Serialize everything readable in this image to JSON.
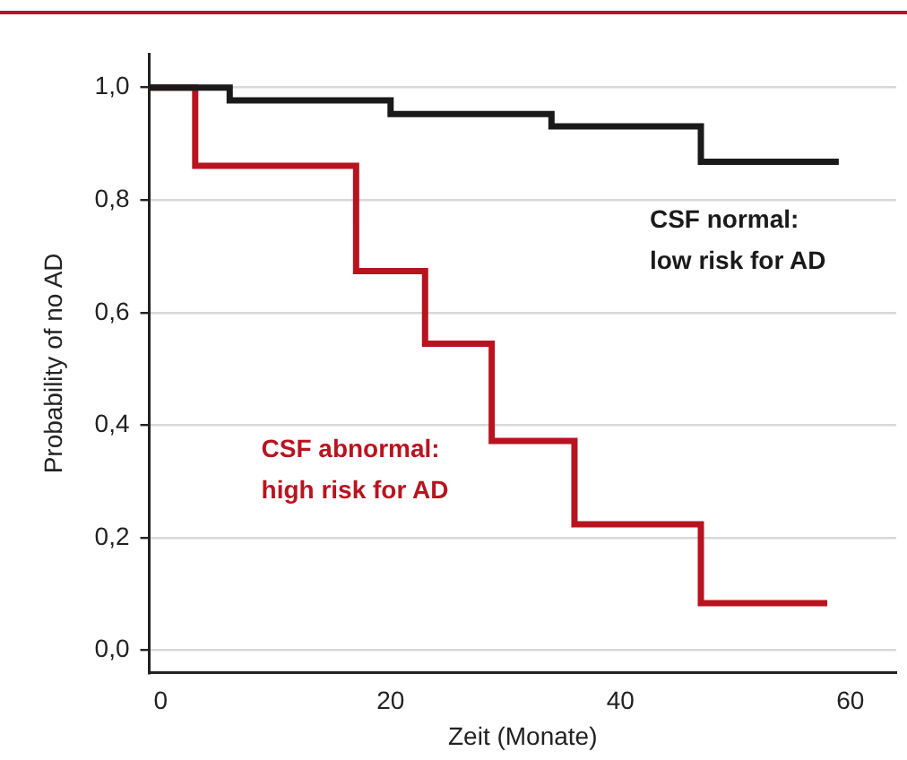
{
  "chart_data": {
    "type": "step",
    "xlabel": "Zeit (Monate)",
    "ylabel": "Probability of no AD",
    "xlim": [
      -1,
      64
    ],
    "xticks": [
      0,
      20,
      40,
      60
    ],
    "ylim": [
      -0.04,
      1.06
    ],
    "yticks": [
      {
        "value": 0,
        "label": "0,0"
      },
      {
        "value": 0.2,
        "label": "0,2"
      },
      {
        "value": 0.4,
        "label": "0,4"
      },
      {
        "value": 0.6,
        "label": "0,6"
      },
      {
        "value": 0.8,
        "label": "0,8"
      },
      {
        "value": 1,
        "label": "1,0"
      }
    ],
    "grid": "y",
    "legend": false,
    "series": [
      {
        "name": "CSF normal:\nlow risk for AD",
        "color": "#1a1a1a",
        "x": [
          -1,
          6,
          20,
          34,
          47,
          59
        ],
        "values": [
          1,
          0.977,
          0.953,
          0.931,
          0.868,
          0.868
        ]
      },
      {
        "name": "CSF abnormal:\nhigh risk for AD",
        "color": "#b8141f",
        "x": [
          -1,
          3,
          17,
          23,
          28.8,
          36,
          47,
          58
        ],
        "values": [
          1,
          0.861,
          0.674,
          0.545,
          0.372,
          0.224,
          0.084,
          0.084
        ]
      }
    ]
  }
}
